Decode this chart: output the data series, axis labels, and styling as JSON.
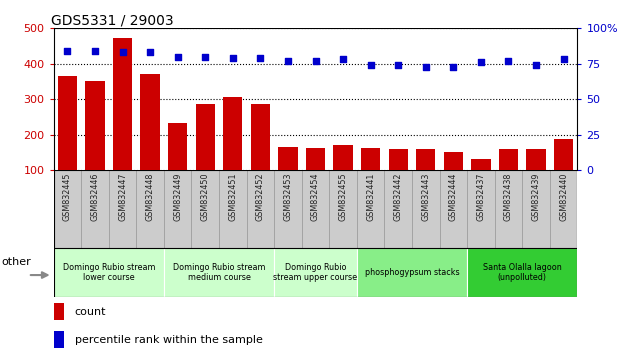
{
  "title": "GDS5331 / 29003",
  "samples": [
    "GSM832445",
    "GSM832446",
    "GSM832447",
    "GSM832448",
    "GSM832449",
    "GSM832450",
    "GSM832451",
    "GSM832452",
    "GSM832453",
    "GSM832454",
    "GSM832455",
    "GSM832441",
    "GSM832442",
    "GSM832443",
    "GSM832444",
    "GSM832437",
    "GSM832438",
    "GSM832439",
    "GSM832440"
  ],
  "counts": [
    365,
    352,
    473,
    372,
    232,
    285,
    305,
    285,
    165,
    162,
    170,
    163,
    160,
    160,
    152,
    132,
    158,
    158,
    188
  ],
  "percentiles": [
    84,
    84,
    83,
    83,
    80,
    80,
    79,
    79,
    77,
    77,
    78,
    74,
    74,
    73,
    73,
    76,
    77,
    74,
    78
  ],
  "bar_color": "#cc0000",
  "dot_color": "#0000cc",
  "ylim_left": [
    100,
    500
  ],
  "ylim_right": [
    0,
    100
  ],
  "yticks_left": [
    100,
    200,
    300,
    400,
    500
  ],
  "yticks_right": [
    0,
    25,
    50,
    75,
    100
  ],
  "groups": [
    {
      "label": "Domingo Rubio stream\nlower course",
      "start": 0,
      "end": 3,
      "color": "#ccffcc"
    },
    {
      "label": "Domingo Rubio stream\nmedium course",
      "start": 4,
      "end": 7,
      "color": "#ccffcc"
    },
    {
      "label": "Domingo Rubio\nstream upper course",
      "start": 8,
      "end": 10,
      "color": "#ccffcc"
    },
    {
      "label": "phosphogypsum stacks",
      "start": 11,
      "end": 14,
      "color": "#88ee88"
    },
    {
      "label": "Santa Olalla lagoon\n(unpolluted)",
      "start": 15,
      "end": 18,
      "color": "#33cc33"
    }
  ],
  "left_label_color": "#cc0000",
  "right_label_color": "#0000cc",
  "tick_bg_color": "#cccccc",
  "plot_bg": "#ffffff",
  "other_label": "other"
}
